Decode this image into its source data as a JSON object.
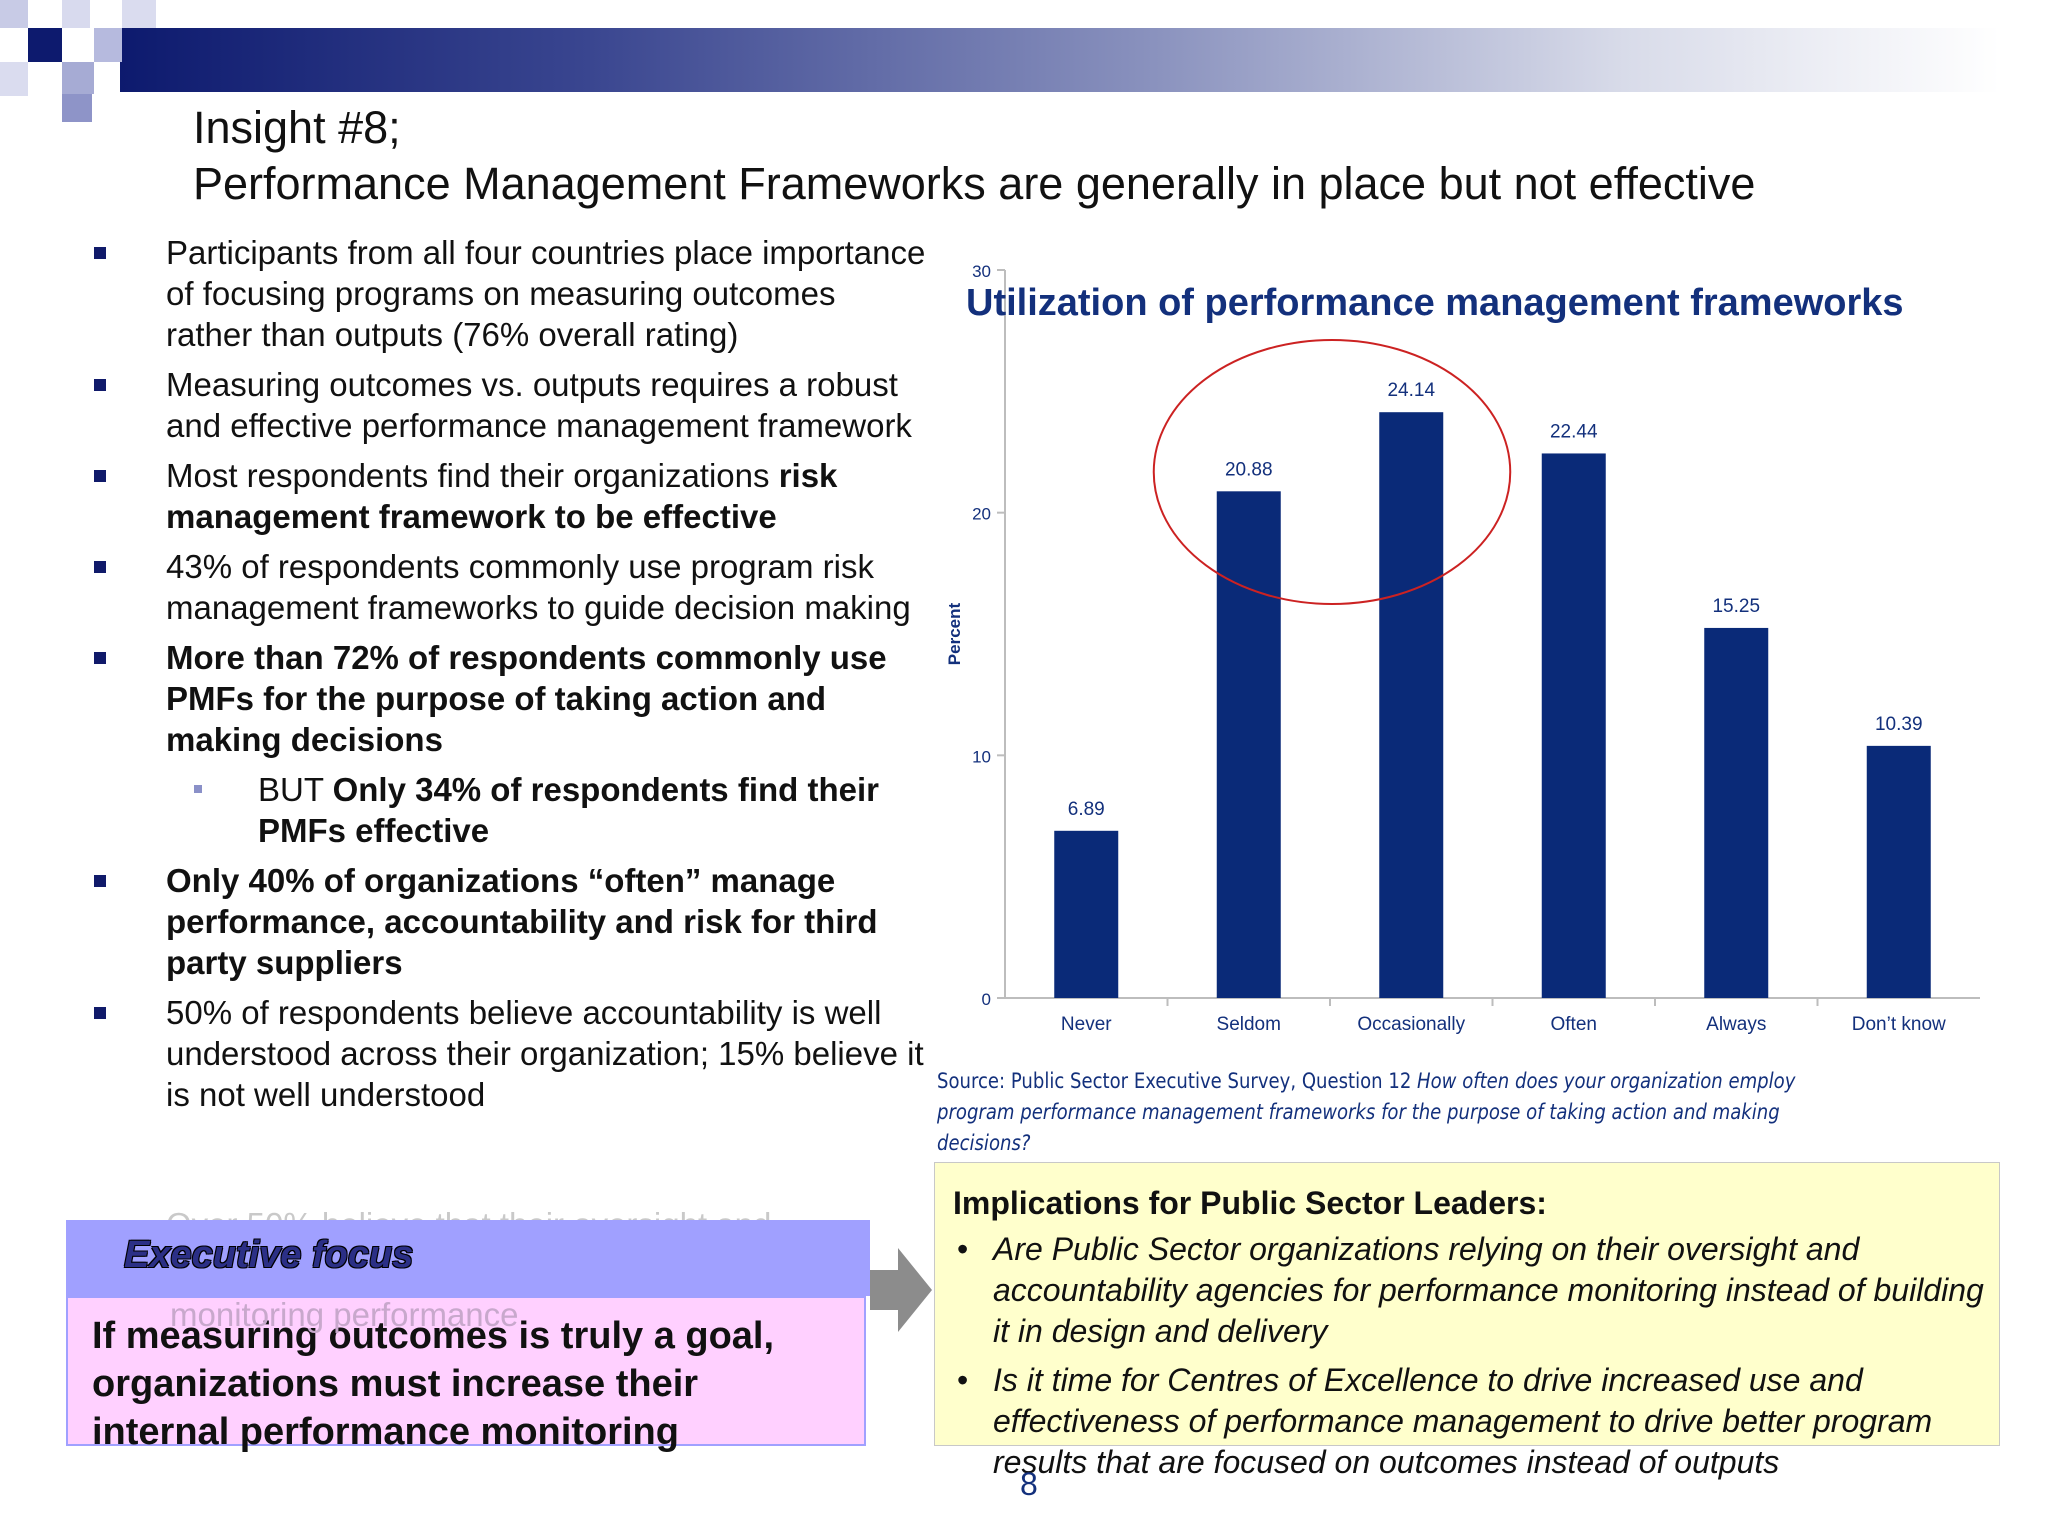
{
  "title": {
    "line1": "Insight #8;",
    "line2": "Performance Management Frameworks are generally in place but not effective"
  },
  "bullets": [
    {
      "parts": [
        {
          "text": "Participants from all four countries place importance of focusing programs on measuring outcomes rather than outputs (76% overall rating)",
          "bold": false
        }
      ]
    },
    {
      "parts": [
        {
          "text": "Measuring outcomes vs. outputs requires a robust and effective performance management framework",
          "bold": false
        }
      ]
    },
    {
      "parts": [
        {
          "text": "Most respondents find their organizations ",
          "bold": false
        },
        {
          "text": "risk management framework to be effective",
          "bold": true
        }
      ]
    },
    {
      "parts": [
        {
          "text": "43% of respondents commonly use program risk management frameworks to guide decision making",
          "bold": false
        }
      ]
    },
    {
      "parts": [
        {
          "text": "More than 72% of respondents commonly use PMFs for the purpose of taking action and making decisions",
          "bold": true
        }
      ]
    },
    {
      "sub": true,
      "parts": [
        {
          "text": "BUT ",
          "bold": false
        },
        {
          "text": "Only 34% of respondents find their PMFs effective",
          "bold": true
        }
      ]
    },
    {
      "parts": [
        {
          "text": "Only 40% of organizations “often” manage performance, accountability and risk for third party suppliers",
          "bold": true
        }
      ]
    },
    {
      "parts": [
        {
          "text": "50% of respondents believe accountability is well understood across their organization; 15% believe it is not well understood",
          "bold": false
        }
      ]
    }
  ],
  "ghost_text": {
    "line1": "Over 50% believe that their oversight and",
    "line2": "monitoring performance"
  },
  "chart_data": {
    "type": "bar",
    "title": "Utilization of performance management frameworks",
    "ylabel": "Percent",
    "xlabel": "",
    "ylim": [
      0,
      30
    ],
    "yticks": [
      0,
      10,
      20,
      30
    ],
    "categories": [
      "Never",
      "Seldom",
      "Occasionally",
      "Often",
      "Always",
      "Don’t know"
    ],
    "values": [
      6.89,
      20.88,
      24.14,
      22.44,
      15.25,
      10.39
    ],
    "data_labels": [
      "6.89",
      "20.88",
      "24.14",
      "22.44",
      "15.25",
      "10.39"
    ],
    "bar_color": "#0a2a78",
    "highlight_color": "#cc2222",
    "highlight_categories": [
      "Seldom",
      "Occasionally"
    ],
    "grid": false,
    "legend": "none"
  },
  "source": {
    "prefix": "Source: Public Sector Executive Survey, Question 12 ",
    "question": "How often does your organization employ program performance management frameworks for the purpose of taking action and making decisions?"
  },
  "executive_focus": {
    "title": "Executive focus",
    "body": "If measuring outcomes is truly a goal, organizations must increase their internal performance monitoring"
  },
  "implications": {
    "title": "Implications for Public Sector Leaders:",
    "items": [
      "Are Public Sector organizations relying on their oversight and accountability agencies for performance monitoring instead of building it in design and delivery",
      "Is it time for Centres of Excellence to drive increased use and effectiveness of performance management to drive better program results that are focused on outcomes instead of outputs"
    ],
    "bullet_glyph": "•"
  },
  "page_number": "8"
}
